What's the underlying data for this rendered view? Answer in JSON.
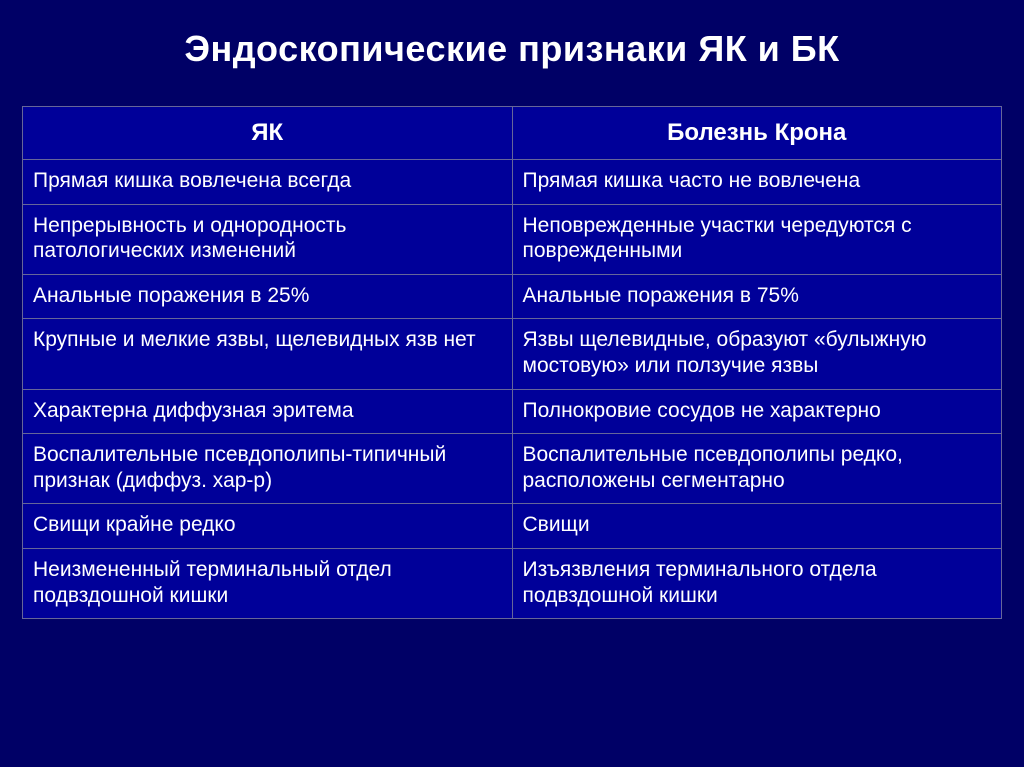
{
  "title": "Эндоскопические признаки ЯК и  БК",
  "table": {
    "background_color": "#000099",
    "border_color": "#666699",
    "text_color": "#ffffff",
    "header_fontsize": 24,
    "cell_fontsize": 21,
    "columns": [
      "ЯК",
      "Болезнь Крона"
    ],
    "rows": [
      [
        "Прямая кишка вовлечена всегда",
        "Прямая кишка часто не вовлечена"
      ],
      [
        "Непрерывность и однородность патологических изменений",
        "Неповрежденные участки чередуются с поврежденными"
      ],
      [
        "Анальные поражения в 25%",
        "Анальные поражения в 75%"
      ],
      [
        "Крупные и мелкие язвы, щелевидных язв нет",
        "Язвы щелевидные, образуют «булыжную мостовую» или ползучие язвы"
      ],
      [
        "Характерна диффузная эритема",
        "Полнокровие сосудов не характерно"
      ],
      [
        "Воспалительные псевдополипы-типичный признак (диффуз. хар-р)",
        "Воспалительные псевдополипы редко, расположены сегментарно"
      ],
      [
        "Свищи крайне редко",
        "Свищи"
      ],
      [
        "Неизмененный терминальный отдел подвздошной кишки",
        "Изъязвления терминального отдела подвздошной кишки"
      ]
    ]
  },
  "slide_background": "#000066"
}
